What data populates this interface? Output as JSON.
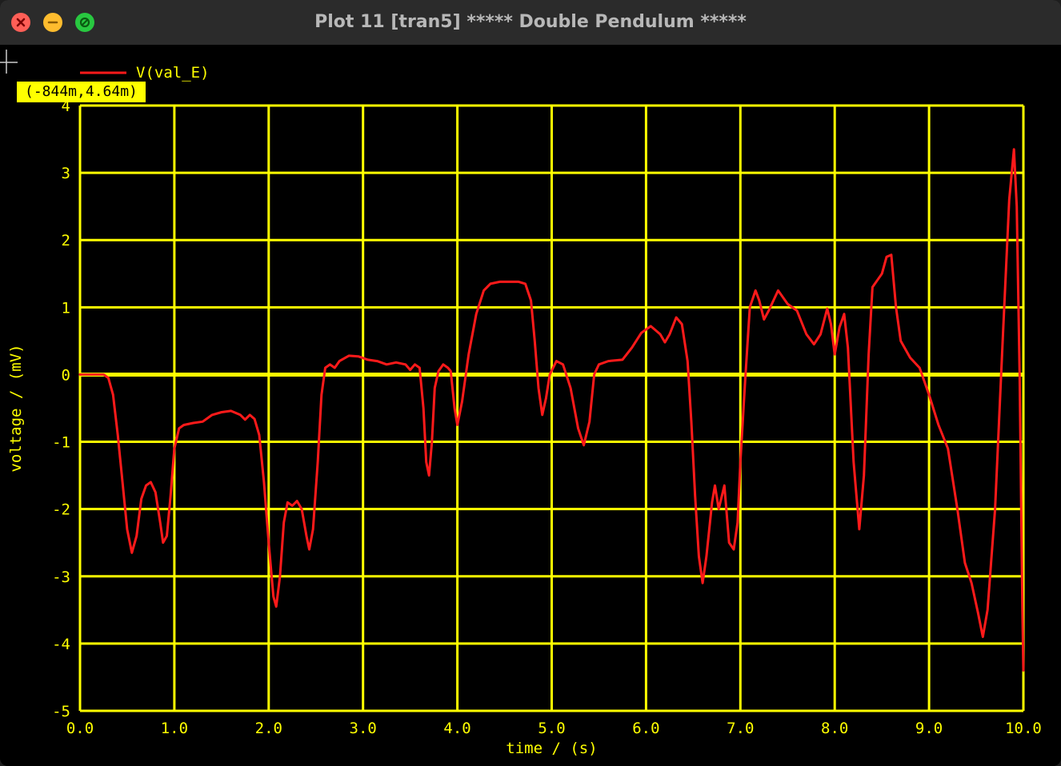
{
  "window": {
    "title": "Plot 11 [tran5] ***** Double Pendulum *****",
    "controls": [
      "close",
      "minimize",
      "maximize"
    ]
  },
  "cursor_readout": "(-844m,4.64m)",
  "colors": {
    "background": "#000000",
    "grid": "#ffff00",
    "axis_text": "#ffff00",
    "trace": "#ff1a1a",
    "tooltip_bg": "#ffff00"
  },
  "chart_data": {
    "type": "line",
    "xlabel": "time / (s)",
    "ylabel": "voltage / (mV)",
    "xlim": [
      0,
      10
    ],
    "ylim": [
      -5,
      4
    ],
    "xticks": [
      0,
      1,
      2,
      3,
      4,
      5,
      6,
      7,
      8,
      9,
      10
    ],
    "xtick_labels": [
      "0.0",
      "1.0",
      "2.0",
      "3.0",
      "4.0",
      "5.0",
      "6.0",
      "7.0",
      "8.0",
      "9.0",
      "10.0"
    ],
    "yticks": [
      -5,
      -4,
      -3,
      -2,
      -1,
      0,
      1,
      2,
      3,
      4
    ],
    "ytick_labels": [
      "-5",
      "-4",
      "-3",
      "-2",
      "-1",
      "0",
      "1",
      "2",
      "3",
      "4"
    ],
    "grid": true,
    "legend": "top-left",
    "series": [
      {
        "name": "V(val_E)",
        "color": "#ff1a1a",
        "points": [
          [
            0.0,
            0.0
          ],
          [
            0.25,
            0.0
          ],
          [
            0.3,
            -0.05
          ],
          [
            0.35,
            -0.3
          ],
          [
            0.4,
            -0.9
          ],
          [
            0.45,
            -1.6
          ],
          [
            0.5,
            -2.3
          ],
          [
            0.55,
            -2.65
          ],
          [
            0.6,
            -2.4
          ],
          [
            0.65,
            -1.85
          ],
          [
            0.7,
            -1.65
          ],
          [
            0.75,
            -1.6
          ],
          [
            0.8,
            -1.75
          ],
          [
            0.85,
            -2.2
          ],
          [
            0.88,
            -2.5
          ],
          [
            0.92,
            -2.4
          ],
          [
            0.96,
            -1.8
          ],
          [
            1.0,
            -1.1
          ],
          [
            1.05,
            -0.8
          ],
          [
            1.1,
            -0.75
          ],
          [
            1.2,
            -0.72
          ],
          [
            1.3,
            -0.7
          ],
          [
            1.4,
            -0.6
          ],
          [
            1.5,
            -0.56
          ],
          [
            1.6,
            -0.54
          ],
          [
            1.7,
            -0.6
          ],
          [
            1.75,
            -0.67
          ],
          [
            1.8,
            -0.6
          ],
          [
            1.85,
            -0.66
          ],
          [
            1.9,
            -0.9
          ],
          [
            1.95,
            -1.6
          ],
          [
            2.0,
            -2.5
          ],
          [
            2.05,
            -3.3
          ],
          [
            2.08,
            -3.45
          ],
          [
            2.12,
            -3.0
          ],
          [
            2.16,
            -2.2
          ],
          [
            2.2,
            -1.9
          ],
          [
            2.25,
            -1.95
          ],
          [
            2.3,
            -1.88
          ],
          [
            2.35,
            -2.0
          ],
          [
            2.4,
            -2.4
          ],
          [
            2.43,
            -2.6
          ],
          [
            2.47,
            -2.3
          ],
          [
            2.52,
            -1.3
          ],
          [
            2.56,
            -0.3
          ],
          [
            2.6,
            0.1
          ],
          [
            2.65,
            0.15
          ],
          [
            2.7,
            0.1
          ],
          [
            2.75,
            0.2
          ],
          [
            2.85,
            0.28
          ],
          [
            2.95,
            0.27
          ],
          [
            3.05,
            0.22
          ],
          [
            3.15,
            0.2
          ],
          [
            3.25,
            0.15
          ],
          [
            3.35,
            0.18
          ],
          [
            3.45,
            0.15
          ],
          [
            3.5,
            0.07
          ],
          [
            3.55,
            0.15
          ],
          [
            3.6,
            0.1
          ],
          [
            3.64,
            -0.5
          ],
          [
            3.67,
            -1.3
          ],
          [
            3.7,
            -1.5
          ],
          [
            3.73,
            -1.0
          ],
          [
            3.76,
            -0.2
          ],
          [
            3.8,
            0.05
          ],
          [
            3.85,
            0.15
          ],
          [
            3.9,
            0.1
          ],
          [
            3.93,
            0.05
          ],
          [
            3.97,
            -0.5
          ],
          [
            4.0,
            -0.75
          ],
          [
            4.05,
            -0.4
          ],
          [
            4.12,
            0.3
          ],
          [
            4.2,
            0.9
          ],
          [
            4.28,
            1.25
          ],
          [
            4.35,
            1.35
          ],
          [
            4.45,
            1.38
          ],
          [
            4.55,
            1.38
          ],
          [
            4.65,
            1.38
          ],
          [
            4.72,
            1.35
          ],
          [
            4.78,
            1.1
          ],
          [
            4.82,
            0.5
          ],
          [
            4.86,
            -0.2
          ],
          [
            4.9,
            -0.6
          ],
          [
            4.94,
            -0.35
          ],
          [
            4.98,
            0.0
          ],
          [
            5.05,
            0.2
          ],
          [
            5.12,
            0.15
          ],
          [
            5.2,
            -0.2
          ],
          [
            5.28,
            -0.8
          ],
          [
            5.34,
            -1.05
          ],
          [
            5.4,
            -0.7
          ],
          [
            5.45,
            0.0
          ],
          [
            5.5,
            0.15
          ],
          [
            5.6,
            0.2
          ],
          [
            5.75,
            0.22
          ],
          [
            5.85,
            0.4
          ],
          [
            5.95,
            0.62
          ],
          [
            6.05,
            0.72
          ],
          [
            6.15,
            0.6
          ],
          [
            6.2,
            0.48
          ],
          [
            6.25,
            0.6
          ],
          [
            6.32,
            0.85
          ],
          [
            6.38,
            0.75
          ],
          [
            6.44,
            0.2
          ],
          [
            6.48,
            -0.7
          ],
          [
            6.52,
            -1.8
          ],
          [
            6.56,
            -2.7
          ],
          [
            6.6,
            -3.1
          ],
          [
            6.64,
            -2.7
          ],
          [
            6.7,
            -1.9
          ],
          [
            6.73,
            -1.65
          ],
          [
            6.77,
            -2.0
          ],
          [
            6.83,
            -1.65
          ],
          [
            6.88,
            -2.5
          ],
          [
            6.93,
            -2.6
          ],
          [
            6.97,
            -2.2
          ],
          [
            7.0,
            -1.3
          ],
          [
            7.05,
            -0.1
          ],
          [
            7.1,
            1.0
          ],
          [
            7.16,
            1.25
          ],
          [
            7.2,
            1.1
          ],
          [
            7.25,
            0.82
          ],
          [
            7.3,
            0.95
          ],
          [
            7.4,
            1.25
          ],
          [
            7.5,
            1.05
          ],
          [
            7.6,
            0.95
          ],
          [
            7.7,
            0.6
          ],
          [
            7.78,
            0.45
          ],
          [
            7.85,
            0.6
          ],
          [
            7.92,
            0.98
          ],
          [
            7.96,
            0.75
          ],
          [
            8.0,
            0.3
          ],
          [
            8.05,
            0.7
          ],
          [
            8.1,
            0.9
          ],
          [
            8.14,
            0.4
          ],
          [
            8.2,
            -1.3
          ],
          [
            8.26,
            -2.3
          ],
          [
            8.31,
            -1.5
          ],
          [
            8.36,
            0.3
          ],
          [
            8.4,
            1.3
          ],
          [
            8.45,
            1.4
          ],
          [
            8.5,
            1.5
          ],
          [
            8.55,
            1.75
          ],
          [
            8.6,
            1.78
          ],
          [
            8.65,
            1.0
          ],
          [
            8.7,
            0.5
          ],
          [
            8.8,
            0.25
          ],
          [
            8.9,
            0.1
          ],
          [
            9.0,
            -0.3
          ],
          [
            9.1,
            -0.75
          ],
          [
            9.2,
            -1.1
          ],
          [
            9.3,
            -2.0
          ],
          [
            9.38,
            -2.8
          ],
          [
            9.45,
            -3.1
          ],
          [
            9.52,
            -3.55
          ],
          [
            9.57,
            -3.9
          ],
          [
            9.62,
            -3.5
          ],
          [
            9.7,
            -2.0
          ],
          [
            9.78,
            0.5
          ],
          [
            9.85,
            2.6
          ],
          [
            9.9,
            3.35
          ],
          [
            9.93,
            2.5
          ],
          [
            9.96,
            0.0
          ],
          [
            9.99,
            -3.5
          ],
          [
            10.0,
            -4.4
          ]
        ]
      }
    ]
  }
}
